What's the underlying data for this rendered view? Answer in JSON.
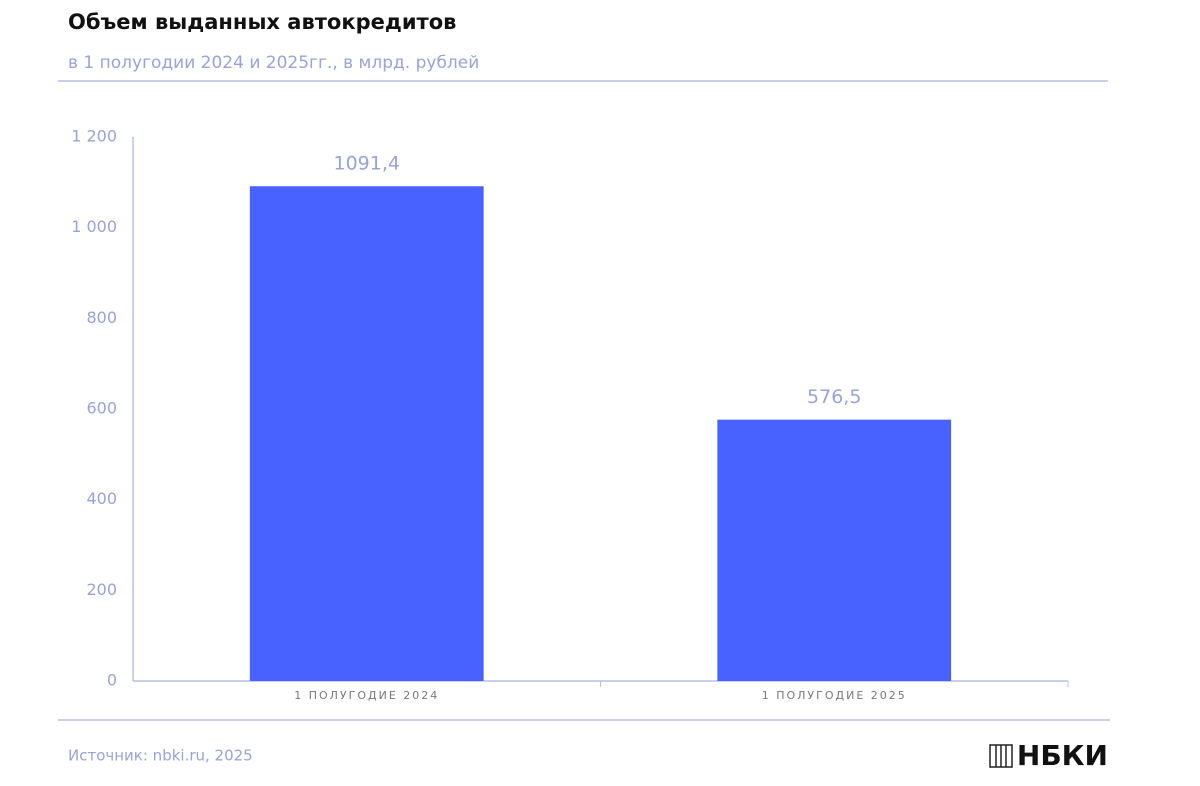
{
  "chart_data": {
    "type": "bar",
    "title": "Объем выданных автокредитов",
    "subtitle": "в 1 полугодии 2024 и 2025гг., в млрд. рублей",
    "categories": [
      "1 ПОЛУГОДИЕ 2024",
      "1 ПОЛУГОДИЕ 2025"
    ],
    "values": [
      1091.4,
      576.5
    ],
    "value_labels": [
      "1091,4",
      "576,5"
    ],
    "color": "#4762ff",
    "ylim": [
      0,
      1200
    ],
    "yticks": [
      0,
      200,
      400,
      600,
      800,
      {
        "value": 1000,
        "label": "1 000"
      },
      {
        "value": 1200,
        "label": "1 200"
      }
    ],
    "grid": false
  },
  "footer": {
    "source": "Источник: nbki.ru, 2025",
    "logo": "НБКИ"
  }
}
